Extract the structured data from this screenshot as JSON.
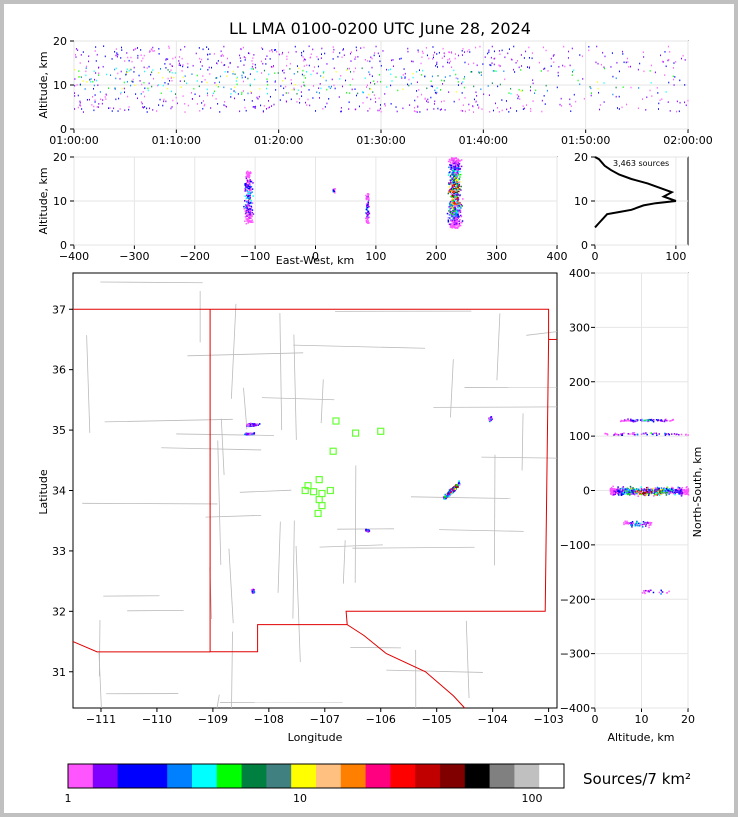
{
  "title": "LL LMA 0100-0200 UTC June 28, 2024",
  "colorbar": {
    "label": "Sources/7 km²",
    "ticks": [
      "1",
      "10",
      "100"
    ],
    "colors": [
      "#ff55ff",
      "#8000ff",
      "#0000ff",
      "#0000ff",
      "#0080ff",
      "#00ffff",
      "#00ff00",
      "#008040",
      "#408080",
      "#ffff00",
      "#ffc080",
      "#ff8000",
      "#ff0080",
      "#ff0000",
      "#c00000",
      "#800000",
      "#000000",
      "#808080",
      "#c0c0c0",
      "#ffffff"
    ]
  },
  "chart_data": [
    {
      "name": "time-height",
      "type": "scatter",
      "ylabel": "Altitude, km",
      "xlabel": "",
      "x_ticks": [
        "01:00:00",
        "01:10:00",
        "01:20:00",
        "01:30:00",
        "01:40:00",
        "01:50:00",
        "02:00:00"
      ],
      "y_ticks": [
        "0",
        "10",
        "20"
      ],
      "ylim": [
        0,
        20
      ],
      "xlim": [
        "01:00:00",
        "02:00:00"
      ],
      "grid": true
    },
    {
      "name": "east-west-altitude",
      "type": "scatter",
      "xlabel": "East-West, km",
      "ylabel": "Altitude, km",
      "x_ticks": [
        "−400",
        "−300",
        "−200",
        "−100",
        "0",
        "100",
        "200",
        "300",
        "400"
      ],
      "y_ticks": [
        "0",
        "10",
        "20"
      ],
      "xlim": [
        -400,
        400
      ],
      "ylim": [
        0,
        20
      ],
      "clusters": [
        {
          "x": -112,
          "alt_min": 5,
          "alt_max": 17
        },
        {
          "x": 30,
          "alt_min": 12,
          "alt_max": 13
        },
        {
          "x": 85,
          "alt_min": 5,
          "alt_max": 12
        },
        {
          "x": 230,
          "alt_min": 4,
          "alt_max": 20
        }
      ],
      "grid": true
    },
    {
      "name": "altitude-histogram",
      "type": "line",
      "annotation": "3,463 sources",
      "x_ticks": [
        "0",
        "100"
      ],
      "y_ticks": [
        "0",
        "10",
        "20"
      ],
      "xlim": [
        0,
        115
      ],
      "ylim": [
        0,
        20
      ],
      "points": [
        [
          0,
          4
        ],
        [
          5,
          5
        ],
        [
          10,
          6
        ],
        [
          15,
          7
        ],
        [
          30,
          7.5
        ],
        [
          45,
          8
        ],
        [
          60,
          9
        ],
        [
          75,
          9.5
        ],
        [
          100,
          10
        ],
        [
          85,
          11
        ],
        [
          95,
          12
        ],
        [
          80,
          13
        ],
        [
          65,
          14
        ],
        [
          45,
          15
        ],
        [
          30,
          16
        ],
        [
          20,
          17
        ],
        [
          12,
          18
        ],
        [
          5,
          19.5
        ],
        [
          0,
          20
        ]
      ],
      "grid": true
    },
    {
      "name": "plan-view-map",
      "type": "scatter",
      "xlabel": "Longitude",
      "ylabel": "Latitude",
      "x_ticks": [
        "−111",
        "−110",
        "−109",
        "−108",
        "−107",
        "−106",
        "−105",
        "−104",
        "−103"
      ],
      "y_ticks": [
        "31",
        "32",
        "33",
        "34",
        "35",
        "36",
        "37"
      ],
      "xlim": [
        -111.5,
        -102.85
      ],
      "ylim": [
        30.4,
        37.6
      ],
      "stations": [
        [
          -106.8,
          35.15
        ],
        [
          -106.45,
          34.95
        ],
        [
          -106.0,
          34.98
        ],
        [
          -106.85,
          34.65
        ],
        [
          -107.1,
          34.18
        ],
        [
          -107.3,
          34.08
        ],
        [
          -107.35,
          34.0
        ],
        [
          -107.2,
          33.98
        ],
        [
          -107.05,
          33.95
        ],
        [
          -106.9,
          34.0
        ],
        [
          -107.1,
          33.85
        ],
        [
          -107.05,
          33.75
        ],
        [
          -107.12,
          33.62
        ]
      ],
      "storms": [
        {
          "lon": -108.3,
          "lat": 35.1
        },
        {
          "lon": -108.35,
          "lat": 34.95
        },
        {
          "lon": -104.75,
          "lat": 34.0
        },
        {
          "lon": -106.25,
          "lat": 33.35
        },
        {
          "lon": -104.05,
          "lat": 35.2
        },
        {
          "lon": -108.3,
          "lat": 32.35
        }
      ]
    },
    {
      "name": "altitude-north-south",
      "type": "scatter",
      "xlabel": "Altitude, km",
      "ylabel": "North-South, km",
      "x_ticks": [
        "0",
        "10",
        "20"
      ],
      "y_ticks": [
        "−400",
        "−300",
        "−200",
        "−100",
        "0",
        "100",
        "200",
        "300",
        "400"
      ],
      "xlim": [
        0,
        20
      ],
      "ylim": [
        -400,
        400
      ],
      "clusters": [
        {
          "y": 130,
          "alt_min": 5,
          "alt_max": 17
        },
        {
          "y": 105,
          "alt_min": 2,
          "alt_max": 20
        },
        {
          "y": 0,
          "alt_min": 3,
          "alt_max": 20
        },
        {
          "y": -60,
          "alt_min": 6,
          "alt_max": 12
        },
        {
          "y": -185,
          "alt_min": 10,
          "alt_max": 16
        }
      ]
    }
  ]
}
